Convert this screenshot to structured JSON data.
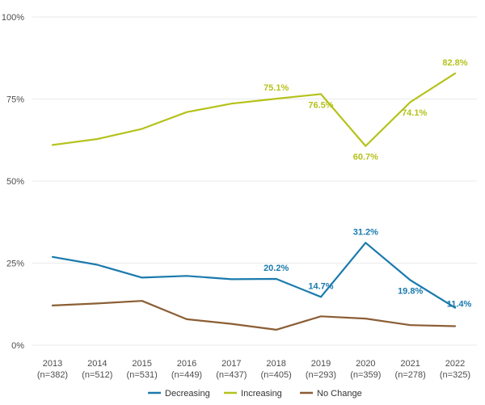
{
  "chart_data": {
    "type": "line",
    "categories": [
      "2013",
      "2014",
      "2015",
      "2016",
      "2017",
      "2018",
      "2019",
      "2020",
      "2021",
      "2022"
    ],
    "category_subtitles": [
      "(n=382)",
      "(n=512)",
      "(n=531)",
      "(n=449)",
      "(n=437)",
      "(n=405)",
      "(n=293)",
      "(n=359)",
      "(n=278)",
      "(n=325)"
    ],
    "ylim": [
      0,
      100
    ],
    "yticks": [
      0,
      25,
      50,
      75,
      100
    ],
    "ytick_labels": [
      "0%",
      "25%",
      "50%",
      "75%",
      "100%"
    ],
    "grid": "horizontal",
    "legend_position": "bottom",
    "series": [
      {
        "name": "Decreasing",
        "color": "#1a7aad",
        "values": [
          26.9,
          24.5,
          20.6,
          21.1,
          20.1,
          20.2,
          14.7,
          31.2,
          19.8,
          11.4
        ],
        "labels": [
          {
            "index": 5,
            "text": "20.2%",
            "pos": "above"
          },
          {
            "index": 6,
            "text": "14.7%",
            "pos": "above"
          },
          {
            "index": 7,
            "text": "31.2%",
            "pos": "above"
          },
          {
            "index": 8,
            "text": "19.8%",
            "pos": "below"
          },
          {
            "index": 9,
            "text": "11.4%",
            "pos": "right-above"
          }
        ]
      },
      {
        "name": "Increasing",
        "color": "#b5c21b",
        "values": [
          61.0,
          62.8,
          65.9,
          71.0,
          73.6,
          75.1,
          76.5,
          60.7,
          74.1,
          82.8
        ],
        "labels": [
          {
            "index": 5,
            "text": "75.1%",
            "pos": "above"
          },
          {
            "index": 6,
            "text": "76.5%",
            "pos": "below"
          },
          {
            "index": 7,
            "text": "60.7%",
            "pos": "below"
          },
          {
            "index": 8,
            "text": "74.1%",
            "pos": "below-right"
          },
          {
            "index": 9,
            "text": "82.8%",
            "pos": "above"
          }
        ]
      },
      {
        "name": "No Change",
        "color": "#8b5e34",
        "values": [
          12.1,
          12.7,
          13.5,
          7.9,
          6.5,
          4.7,
          8.8,
          8.1,
          6.1,
          5.8
        ],
        "labels": []
      }
    ]
  }
}
